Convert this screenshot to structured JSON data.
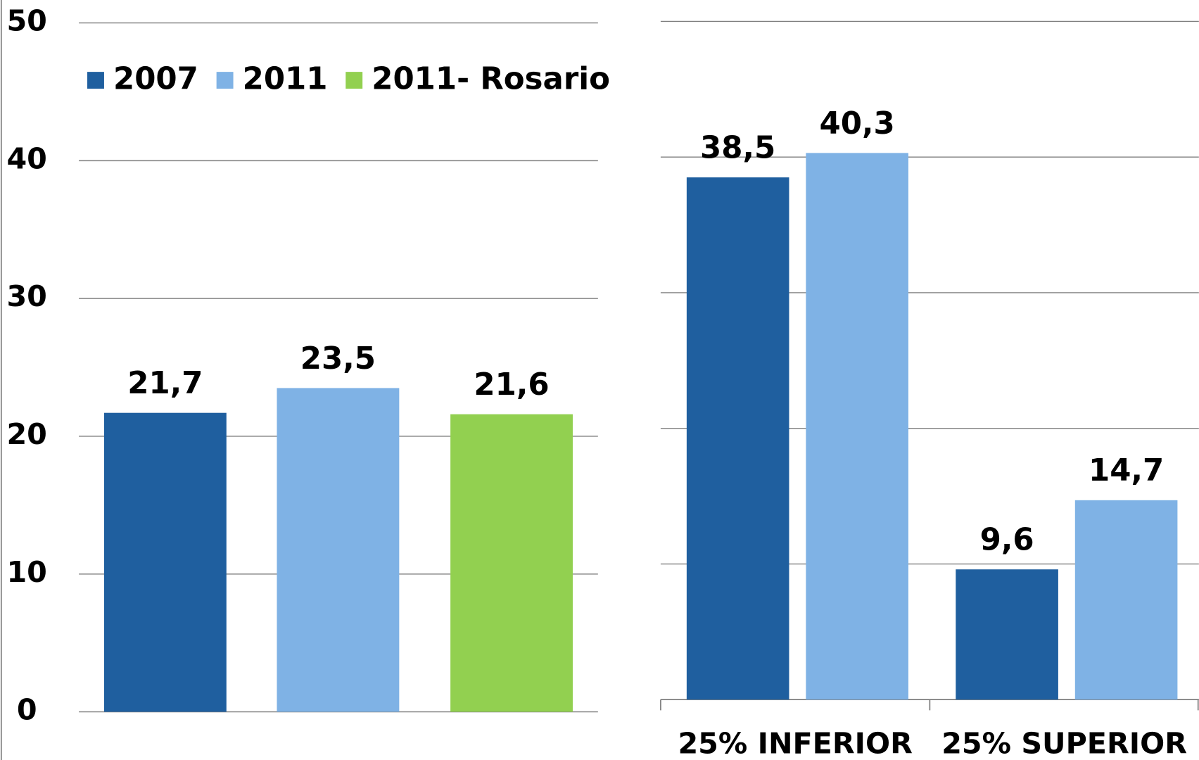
{
  "chart_data": [
    {
      "type": "bar",
      "categories": [
        null
      ],
      "series": [
        {
          "name": "2007",
          "color": "#1f5f9f",
          "values": [
            21.7
          ],
          "value_labels": [
            "21,7"
          ]
        },
        {
          "name": "2011",
          "color": "#7fb2e5",
          "values": [
            23.5
          ],
          "value_labels": [
            "23,5"
          ]
        },
        {
          "name": "2011- Rosario",
          "color": "#92d050",
          "values": [
            21.6
          ],
          "value_labels": [
            "21,6"
          ]
        }
      ],
      "ylim": [
        0,
        50
      ],
      "yticks": [
        0,
        10,
        20,
        30,
        40,
        50
      ],
      "grid": true,
      "legend": "top"
    },
    {
      "type": "bar",
      "categories": [
        "25% INFERIOR",
        "25% SUPERIOR"
      ],
      "series": [
        {
          "name": "2007",
          "color": "#1f5f9f",
          "values": [
            38.5,
            9.6
          ],
          "value_labels": [
            "38,5",
            "9,6"
          ]
        },
        {
          "name": "2011",
          "color": "#7fb2e5",
          "values": [
            40.3,
            14.7
          ],
          "value_labels": [
            "40,3",
            "14,7"
          ]
        }
      ],
      "ylim": [
        0,
        50
      ],
      "yticks": [
        0,
        10,
        20,
        30,
        40,
        50
      ],
      "grid": true,
      "ytick_labels": false
    }
  ]
}
